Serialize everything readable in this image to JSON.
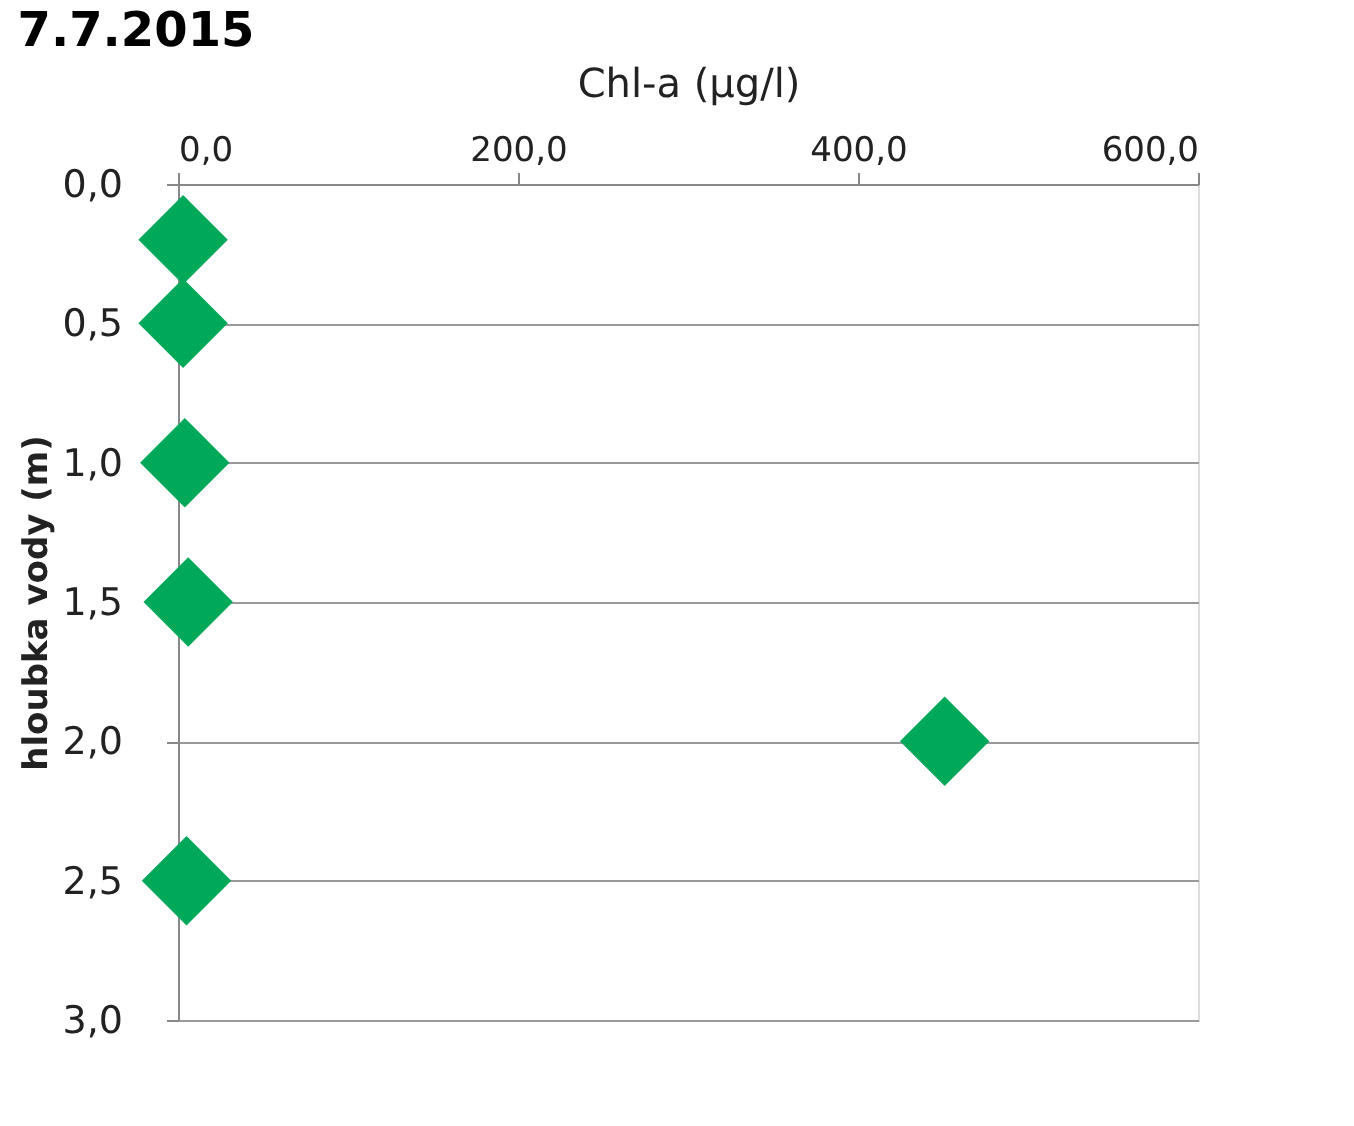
{
  "chart_data": {
    "type": "scatter",
    "title": "7.7.2015",
    "xlabel": "Chl-a (µg/l)",
    "ylabel": "hloubka vody (m)",
    "x": [
      3,
      3,
      4,
      6,
      451,
      5
    ],
    "series": [
      {
        "color": "#00a85a",
        "values": [
          0.2,
          0.5,
          1.0,
          1.5,
          2.0,
          2.5
        ]
      }
    ],
    "xlim": [
      0,
      600
    ],
    "xticks": [
      {
        "value": 0,
        "label": "0,0"
      },
      {
        "value": 200,
        "label": "200,0"
      },
      {
        "value": 400,
        "label": "400,0"
      },
      {
        "value": 600,
        "label": "600,0"
      }
    ],
    "ylim": [
      3,
      0
    ],
    "yticks": [
      {
        "value": 0,
        "label": "0,0"
      },
      {
        "value": 0.5,
        "label": "0,5"
      },
      {
        "value": 1,
        "label": "1,0"
      },
      {
        "value": 1.5,
        "label": "1,5"
      },
      {
        "value": 2,
        "label": "2,0"
      },
      {
        "value": 2.5,
        "label": "2,5"
      },
      {
        "value": 3,
        "label": "3,0"
      }
    ],
    "grid": "y",
    "marker": "diamond"
  }
}
